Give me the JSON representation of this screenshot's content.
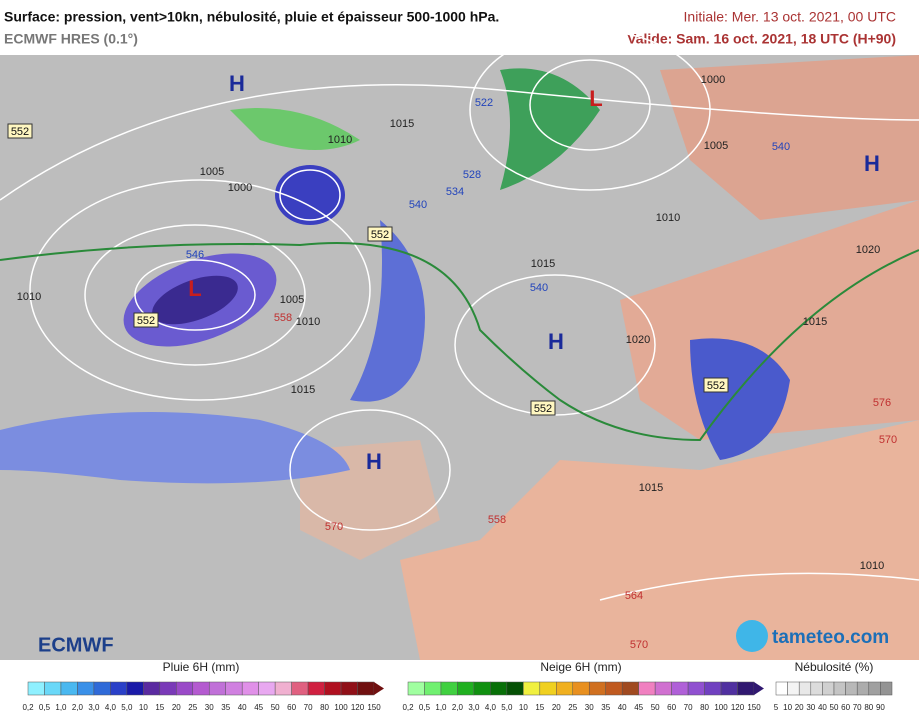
{
  "header": {
    "title": "Surface: pression, vent>10kn, nébulosité, pluie et épaisseur 500-1000 hPa.",
    "model": "ECMWF HRES (0.1°)",
    "initial": "Initiale: Mer. 13 oct. 2021, 00 UTC",
    "valid": "Valide: Sam. 16 oct. 2021, 18 UTC (H+90)"
  },
  "map": {
    "centers": [
      "H",
      "L",
      "H",
      "L",
      "H",
      "H"
    ],
    "isobars": [
      "1015",
      "1010",
      "1005",
      "1000",
      "1015",
      "1010",
      "1005",
      "1000",
      "1020",
      "1015",
      "1020",
      "1010",
      "1005",
      "1015",
      "1010",
      "1015",
      "1010"
    ],
    "thickness_boxes": [
      "552",
      "552",
      "552",
      "552",
      "552"
    ],
    "thickness": [
      "546",
      "540",
      "534",
      "528",
      "522",
      "540",
      "564",
      "570",
      "558",
      "570",
      "576",
      "570",
      "558",
      "540"
    ]
  },
  "legend": {
    "rain": {
      "title": "Pluie 6H (mm)",
      "labels": [
        "0,2",
        "0,5",
        "1,0",
        "2,0",
        "3,0",
        "4,0",
        "5,0",
        "10",
        "15",
        "20",
        "25",
        "30",
        "35",
        "40",
        "45",
        "50",
        "60",
        "70",
        "80",
        "100",
        "120",
        "150"
      ]
    },
    "snow": {
      "title": "Neige 6H (mm)",
      "labels": [
        "0,2",
        "0,5",
        "1,0",
        "2,0",
        "3,0",
        "4,0",
        "5,0",
        "10",
        "15",
        "20",
        "25",
        "30",
        "35",
        "40",
        "45",
        "50",
        "60",
        "70",
        "80",
        "100",
        "120",
        "150"
      ]
    },
    "cloud": {
      "title": "Nébulosité (%)",
      "labels": [
        "5",
        "10",
        "20",
        "30",
        "40",
        "50",
        "60",
        "70",
        "80",
        "90"
      ]
    }
  },
  "logos": {
    "left": "ECMWF",
    "right": "tameteo.com"
  }
}
